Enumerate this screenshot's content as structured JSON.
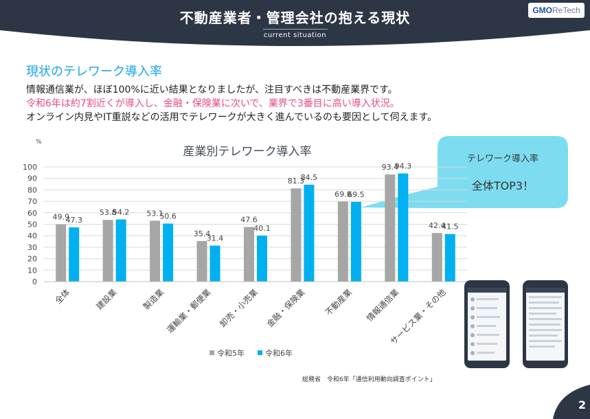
{
  "header": {
    "title": "不動産業者・管理会社の抱える現状",
    "subtitle": "current situation",
    "logo_main": "GMO",
    "logo_sub": "ReTech",
    "bg_color": "#2d3645"
  },
  "section_title": "現状のテレワーク導入率",
  "message": {
    "line1": "情報通信業が、ほぼ100%に近い結果となりましたが、注目すべきは不動産業界です。",
    "line2": "令和6年は約7割近くが導入し、金融・保険業に次いで、業界で3番目に高い導入状況。",
    "line3": "オンライン内見やIT重説などの活用でテレワークが大きく進んでいるのも要因として伺えます。"
  },
  "callout": {
    "line1": "テレワーク導入率",
    "line2": "全体TOP3！",
    "color": "#7ddcf0"
  },
  "source": "総務省　令和6年「通信利用動向調査ポイント」",
  "page_number": "2",
  "chart_data": {
    "type": "bar",
    "title": "産業別テレワーク導入率",
    "ylabel": "%",
    "ylim": [
      0,
      100
    ],
    "yticks": [
      0,
      10,
      20,
      30,
      40,
      50,
      60,
      70,
      80,
      90,
      100
    ],
    "grid": true,
    "legend_position": "bottom",
    "categories": [
      "全体",
      "建設業",
      "製造業",
      "運輸業・郵便業",
      "卸売・小売業",
      "金融・保険業",
      "不動産業",
      "情報通信業",
      "サービス業・その他"
    ],
    "series": [
      {
        "name": "令和5年",
        "color": "#a6a6a6",
        "values": [
          49.9,
          53.8,
          53.1,
          35.4,
          47.6,
          81.3,
          69.8,
          93.4,
          42.4
        ]
      },
      {
        "name": "令和6年",
        "color": "#00b0f0",
        "values": [
          47.3,
          54.2,
          50.6,
          31.4,
          40.1,
          84.5,
          69.5,
          94.3,
          41.5
        ]
      }
    ]
  }
}
